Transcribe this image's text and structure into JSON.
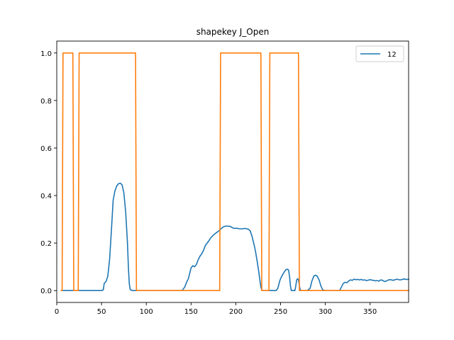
{
  "chart_data": {
    "type": "line",
    "title": "shapekey J_Open",
    "xlabel": "",
    "ylabel": "",
    "xlim": [
      0,
      393
    ],
    "ylim": [
      -0.05,
      1.05
    ],
    "xticks": [
      0,
      50,
      100,
      150,
      200,
      250,
      300,
      350
    ],
    "yticks": [
      0.0,
      0.2,
      0.4,
      0.6,
      0.8,
      1.0
    ],
    "ytick_labels": [
      "0.0",
      "0.2",
      "0.4",
      "0.6",
      "0.8",
      "1.0"
    ],
    "grid": false,
    "legend": {
      "placement": "top-right",
      "entries": [
        "12"
      ]
    },
    "series": [
      {
        "name": "12",
        "color": "#1f77b4",
        "x": [
          5,
          50,
          52,
          53,
          55,
          57,
          59,
          61,
          63,
          65,
          67,
          69,
          71,
          73,
          75,
          77,
          79,
          80,
          81,
          82,
          84,
          90,
          100,
          120,
          140,
          143,
          145,
          147,
          148,
          150,
          152,
          154,
          156,
          158,
          160,
          162,
          164,
          166,
          168,
          170,
          172,
          174,
          176,
          178,
          180,
          182,
          184,
          186,
          188,
          190,
          192,
          194,
          196,
          198,
          200,
          202,
          204,
          206,
          208,
          210,
          212,
          214,
          216,
          218,
          220,
          222,
          224,
          226,
          227,
          228,
          229,
          230,
          232,
          240,
          245,
          247,
          249,
          250,
          252,
          254,
          256,
          258,
          259,
          260,
          261,
          262,
          264,
          266,
          267,
          268,
          269,
          270,
          271,
          272,
          273,
          274,
          276,
          280,
          283,
          285,
          287,
          289,
          291,
          293,
          295,
          297,
          300,
          310,
          316,
          318,
          320,
          322,
          324,
          326,
          328,
          330,
          332,
          334,
          336,
          338,
          340,
          342,
          344,
          346,
          348,
          350,
          352,
          354,
          356,
          358,
          360,
          362,
          364,
          366,
          368,
          370,
          372,
          374,
          376,
          378,
          380,
          382,
          384,
          386,
          388,
          390,
          393
        ],
        "y": [
          0.0,
          0.0,
          0.003,
          0.03,
          0.038,
          0.06,
          0.13,
          0.25,
          0.38,
          0.42,
          0.44,
          0.45,
          0.452,
          0.445,
          0.41,
          0.33,
          0.2,
          0.1,
          0.03,
          0.005,
          0.0,
          0.0,
          0.0,
          0.0,
          0.0,
          0.015,
          0.035,
          0.05,
          0.065,
          0.095,
          0.105,
          0.1,
          0.11,
          0.13,
          0.145,
          0.155,
          0.17,
          0.19,
          0.2,
          0.21,
          0.222,
          0.23,
          0.237,
          0.243,
          0.248,
          0.255,
          0.262,
          0.268,
          0.271,
          0.271,
          0.271,
          0.27,
          0.265,
          0.262,
          0.262,
          0.262,
          0.26,
          0.26,
          0.26,
          0.262,
          0.26,
          0.258,
          0.252,
          0.23,
          0.2,
          0.165,
          0.12,
          0.07,
          0.04,
          0.015,
          0.003,
          0.0,
          0.0,
          0.0,
          0.0,
          0.01,
          0.04,
          0.05,
          0.065,
          0.078,
          0.088,
          0.09,
          0.085,
          0.06,
          0.02,
          0.0,
          0.0,
          0.0,
          0.02,
          0.045,
          0.05,
          0.045,
          0.02,
          0.003,
          0.0,
          0.0,
          0.0,
          0.0,
          0.01,
          0.04,
          0.06,
          0.065,
          0.06,
          0.045,
          0.02,
          0.003,
          0.0,
          0.0,
          0.0,
          0.015,
          0.03,
          0.035,
          0.033,
          0.04,
          0.045,
          0.043,
          0.048,
          0.046,
          0.047,
          0.045,
          0.047,
          0.044,
          0.045,
          0.042,
          0.044,
          0.046,
          0.044,
          0.043,
          0.041,
          0.042,
          0.04,
          0.045,
          0.043,
          0.038,
          0.04,
          0.044,
          0.046,
          0.045,
          0.043,
          0.046,
          0.048,
          0.046,
          0.045,
          0.047,
          0.049,
          0.047,
          0.047
        ]
      },
      {
        "color": "#ff7f0e",
        "x": [
          5,
          6,
          7,
          17,
          18,
          19,
          23,
          24,
          25,
          87,
          88,
          89,
          181,
          182,
          183,
          227,
          228,
          229,
          236,
          237,
          238,
          269,
          270,
          271,
          393
        ],
        "y": [
          0.0,
          0.0,
          1.0,
          1.0,
          1.0,
          0.0,
          0.0,
          0.0,
          1.0,
          1.0,
          1.0,
          0.0,
          0.0,
          0.0,
          1.0,
          1.0,
          1.0,
          0.0,
          0.0,
          0.0,
          1.0,
          1.0,
          1.0,
          0.0,
          0.0
        ]
      }
    ]
  }
}
